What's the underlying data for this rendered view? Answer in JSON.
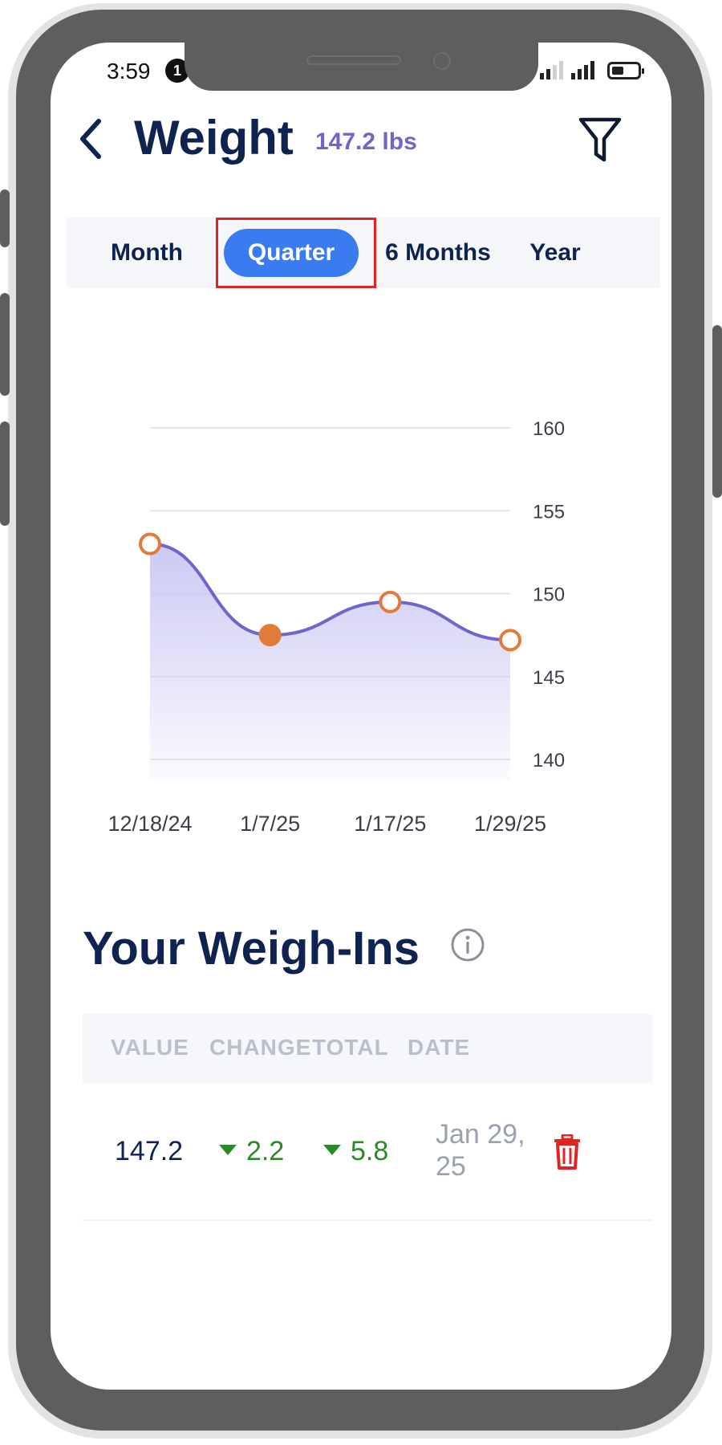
{
  "status_bar": {
    "time": "3:59",
    "notification_count": "1"
  },
  "header": {
    "title": "Weight",
    "current_value": "147.2 lbs"
  },
  "tabs": [
    {
      "label": "Month",
      "active": false
    },
    {
      "label": "Quarter",
      "active": true
    },
    {
      "label": "6 Months",
      "active": false
    },
    {
      "label": "Year",
      "active": false
    }
  ],
  "chart_data": {
    "type": "area",
    "x": [
      "12/18/24",
      "1/7/25",
      "1/17/25",
      "1/29/25"
    ],
    "y": [
      153,
      147.5,
      149.5,
      147.2
    ],
    "selected_index": 1,
    "ylim": [
      140,
      160
    ],
    "yticks": [
      160,
      155,
      150,
      145,
      140
    ],
    "grid": true,
    "y_axis_side": "right",
    "line_color": "#6e66cc",
    "point_color": "#e27a3a",
    "fill_color": "#c9c6f2"
  },
  "weigh_ins": {
    "title": "Your Weigh-Ins",
    "columns": [
      "VALUE",
      "CHANGE",
      "TOTAL",
      "DATE"
    ],
    "rows": [
      {
        "value": "147.2",
        "change": "2.2",
        "total": "5.8",
        "date": "Jan 29, 25"
      }
    ]
  },
  "colors": {
    "navy": "#0f2350",
    "accent": "#3b7bf0",
    "positive": "#2a8a2a",
    "delete": "#e02424"
  },
  "icons": [
    "back-arrow-icon",
    "filter-icon",
    "info-icon",
    "trash-icon",
    "triangle-down-icon"
  ]
}
